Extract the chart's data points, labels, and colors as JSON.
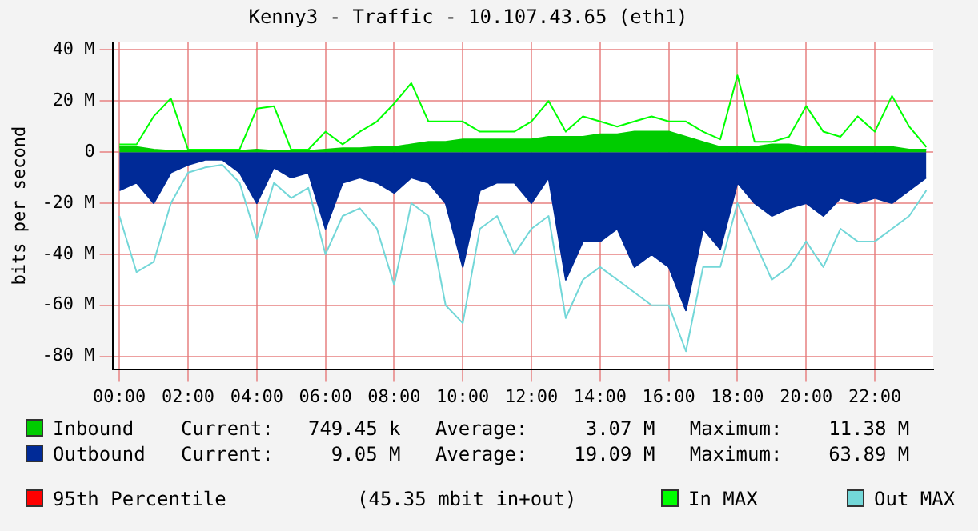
{
  "chart_data": {
    "type": "area",
    "title": "Kenny3 - Traffic - 10.107.43.65 (eth1)",
    "ylabel": "bits per second",
    "x": [
      0,
      0.5,
      1,
      1.5,
      2,
      2.5,
      3,
      3.5,
      4,
      4.5,
      5,
      5.5,
      6,
      6.5,
      7,
      7.5,
      8,
      8.5,
      9,
      9.5,
      10,
      10.5,
      11,
      11.5,
      12,
      12.5,
      13,
      13.5,
      14,
      14.5,
      15,
      15.5,
      16,
      16.5,
      17,
      17.5,
      18,
      18.5,
      19,
      19.5,
      20,
      20.5,
      21,
      21.5,
      22,
      22.5,
      23,
      23.5
    ],
    "series": [
      {
        "name": "Inbound",
        "type": "area",
        "color": "#00cc00",
        "values": [
          2,
          2,
          1,
          0.5,
          0.5,
          0.5,
          0.5,
          0.5,
          1,
          0.5,
          0.5,
          0.5,
          1,
          1.5,
          1.5,
          2,
          2,
          3,
          4,
          4,
          5,
          5,
          5,
          5,
          5,
          6,
          6,
          6,
          7,
          7,
          8,
          8,
          8,
          6,
          4,
          2,
          2,
          2,
          3,
          3,
          2,
          2,
          2,
          2,
          2,
          2,
          1,
          1
        ]
      },
      {
        "name": "Outbound",
        "type": "area",
        "color": "#002a97",
        "values": [
          -15,
          -12,
          -20,
          -8,
          -5,
          -3,
          -3,
          -8,
          -20,
          -6,
          -10,
          -8,
          -30,
          -12,
          -10,
          -12,
          -16,
          -10,
          -12,
          -20,
          -45,
          -15,
          -12,
          -12,
          -20,
          -10,
          -50,
          -35,
          -35,
          -30,
          -45,
          -40,
          -45,
          -62,
          -30,
          -38,
          -12,
          -20,
          -25,
          -22,
          -20,
          -25,
          -18,
          -20,
          -18,
          -20,
          -15,
          -10
        ]
      },
      {
        "name": "In MAX",
        "type": "line",
        "color": "#00ff00",
        "values": [
          3,
          3,
          14,
          21,
          1,
          1,
          1,
          1,
          17,
          18,
          1,
          1,
          8,
          3,
          8,
          12,
          19,
          27,
          12,
          12,
          12,
          8,
          8,
          8,
          12,
          20,
          8,
          14,
          12,
          10,
          12,
          14,
          12,
          12,
          8,
          5,
          30,
          4,
          4,
          6,
          18,
          8,
          6,
          14,
          8,
          22,
          10,
          2
        ]
      },
      {
        "name": "Out MAX",
        "type": "line",
        "color": "#73d7d8",
        "values": [
          -25,
          -47,
          -43,
          -20,
          -8,
          -6,
          -5,
          -12,
          -34,
          -12,
          -18,
          -14,
          -40,
          -25,
          -22,
          -30,
          -52,
          -20,
          -25,
          -60,
          -67,
          -30,
          -25,
          -40,
          -30,
          -25,
          -65,
          -50,
          -45,
          -50,
          -55,
          -60,
          -60,
          -78,
          -45,
          -45,
          -20,
          -35,
          -50,
          -45,
          -35,
          -45,
          -30,
          -35,
          -35,
          -30,
          -25,
          -15
        ]
      }
    ],
    "xlim": [
      -0.2,
      23.7
    ],
    "xticks": [
      {
        "value": 0,
        "label": "00:00"
      },
      {
        "value": 2,
        "label": "02:00"
      },
      {
        "value": 4,
        "label": "04:00"
      },
      {
        "value": 6,
        "label": "06:00"
      },
      {
        "value": 8,
        "label": "08:00"
      },
      {
        "value": 10,
        "label": "10:00"
      },
      {
        "value": 12,
        "label": "12:00"
      },
      {
        "value": 14,
        "label": "14:00"
      },
      {
        "value": 16,
        "label": "16:00"
      },
      {
        "value": 18,
        "label": "18:00"
      },
      {
        "value": 20,
        "label": "20:00"
      },
      {
        "value": 22,
        "label": "22:00"
      }
    ],
    "ylim": [
      -85,
      43
    ],
    "yticks": [
      {
        "value": 40,
        "label": "40 M"
      },
      {
        "value": 20,
        "label": "20 M"
      },
      0,
      {
        "value": -20,
        "label": "-20 M"
      },
      {
        "value": -40,
        "label": "-40 M"
      },
      {
        "value": -60,
        "label": "-60 M"
      },
      {
        "value": -80,
        "label": "-80 M"
      }
    ],
    "grid": true,
    "legend": "bottom",
    "marker": "none",
    "line_style": "solid",
    "annotations": [
      "Current:   749.45 k   Average:     3.07 M   Maximum:    11.38 M",
      "Current:     9.05 M   Average:    19.09 M   Maximum:    63.89 M",
      "95th Percentile",
      "(45.35 mbit in+out)"
    ]
  }
}
